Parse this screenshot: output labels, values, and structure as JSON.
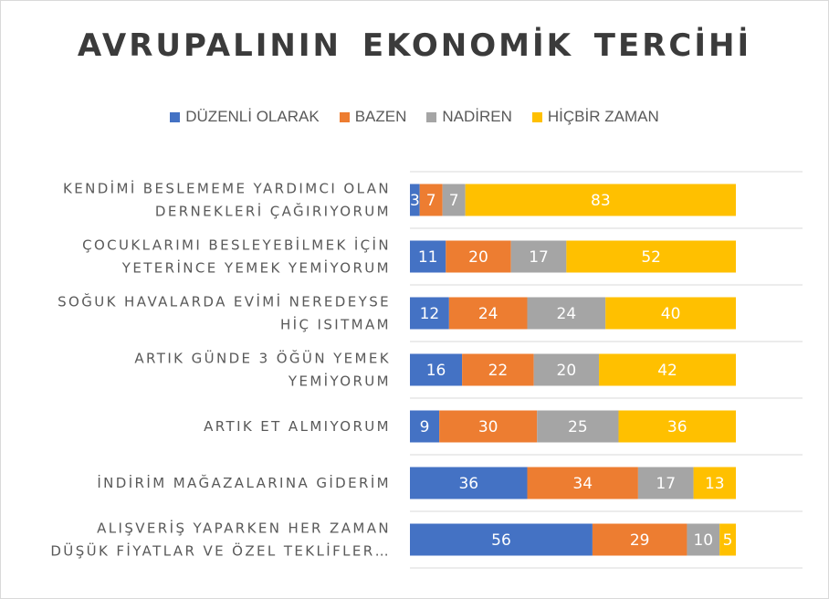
{
  "chart_data": {
    "type": "bar",
    "orientation": "horizontal",
    "stacked": true,
    "title": "AVRUPALININ EKONOMİK TERCİHİ",
    "categories": [
      [
        "KENDİMİ BESLEMEME YARDIMCI OLAN",
        "DERNEKLERİ ÇAĞIRIYORUM"
      ],
      [
        "ÇOCUKLARIMI BESLEYEBİLMEK İÇİN",
        "YETERİNCE YEMEK YEMİYORUM"
      ],
      [
        "SOĞUK HAVALARDA EVİMİ NEREDEYSE",
        "HİÇ ISITMAM"
      ],
      [
        "ARTIK GÜNDE 3 ÖĞÜN YEMEK",
        "YEMİYORUM"
      ],
      [
        "ARTIK ET ALMIYORUM"
      ],
      [
        "İNDİRİM MAĞAZALARINA GİDERİM"
      ],
      [
        "ALIŞVERİŞ YAPARKEN HER ZAMAN",
        "DÜŞÜK FİYATLAR VE ÖZEL TEKLİFLER…"
      ]
    ],
    "series": [
      {
        "name": "DÜZENLİ OLARAK",
        "color": "#4472c4",
        "values": [
          3,
          11,
          12,
          16,
          9,
          36,
          56
        ]
      },
      {
        "name": "BAZEN",
        "color": "#ed7d31",
        "values": [
          7,
          20,
          24,
          22,
          30,
          34,
          29
        ]
      },
      {
        "name": "NADİREN",
        "color": "#a5a5a5",
        "values": [
          7,
          17,
          24,
          20,
          25,
          17,
          10
        ]
      },
      {
        "name": "HİÇBİR ZAMAN",
        "color": "#ffc000",
        "values": [
          83,
          52,
          40,
          42,
          36,
          13,
          5
        ]
      }
    ],
    "xlim": [
      0,
      100
    ],
    "grid": true,
    "legend_position": "top"
  }
}
